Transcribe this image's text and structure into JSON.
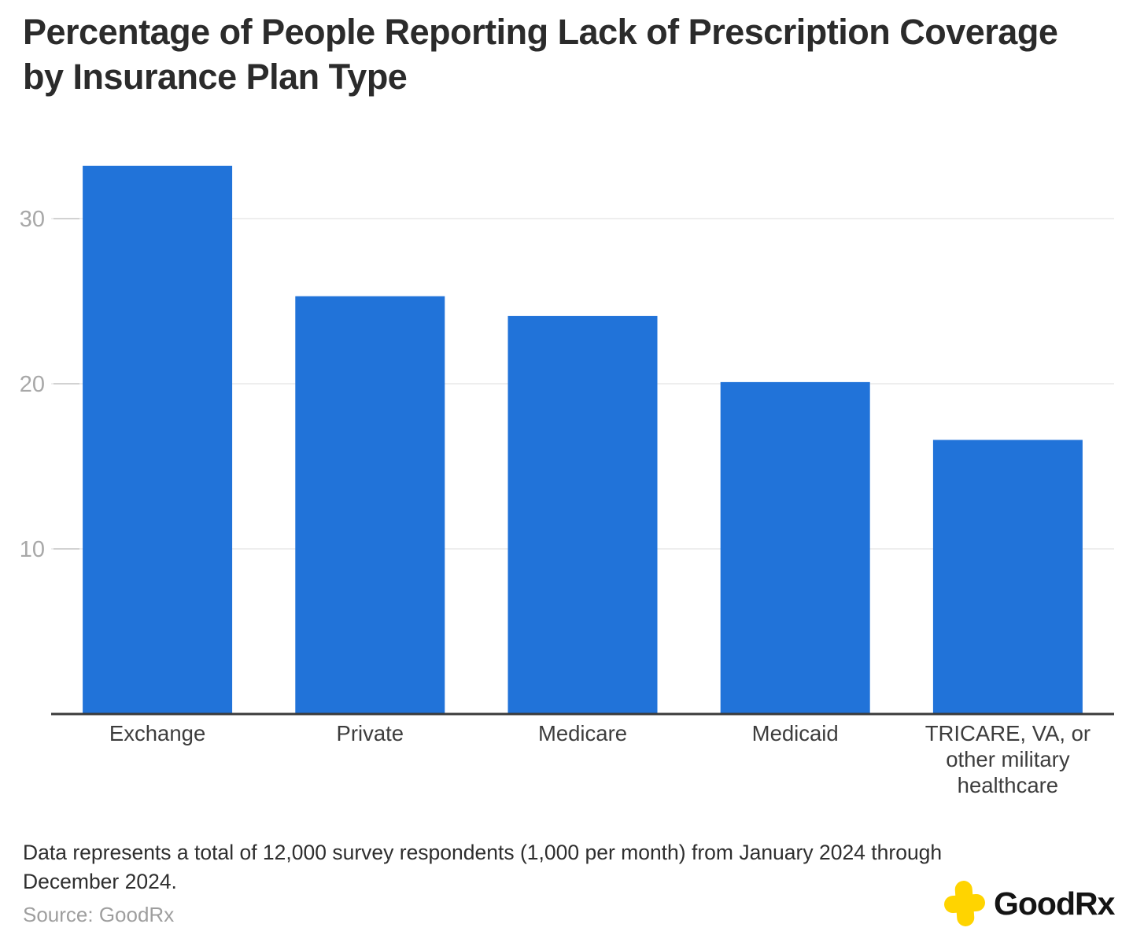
{
  "chart_data": {
    "type": "bar",
    "title": "Percentage of People Reporting Lack of Prescription Coverage by Insurance Plan Type",
    "categories": [
      "Exchange",
      "Private",
      "Medicare",
      "Medicaid",
      "TRICARE, VA, or other military healthcare"
    ],
    "categories_wrapped": [
      [
        "Exchange"
      ],
      [
        "Private"
      ],
      [
        "Medicare"
      ],
      [
        "Medicaid"
      ],
      [
        "TRICARE, VA, or",
        "other military",
        "healthcare"
      ]
    ],
    "values": [
      33.2,
      25.3,
      24.1,
      20.1,
      16.6
    ],
    "xlabel": "",
    "ylabel": "",
    "ylim": [
      0,
      35.6
    ],
    "yticks": [
      10,
      20,
      30
    ],
    "grid": "horizontal",
    "legend": "none",
    "bar_color": "#2173d9",
    "gridline_color": "#e9e9e9",
    "tick_mark_color": "#d2d2d2",
    "tick_label_color": "#a8a8a8",
    "category_label_color": "#3d3d3d",
    "axis_line_color": "#3a3a3a"
  },
  "footer": {
    "note": "Data represents a total of 12,000 survey respondents (1,000 per month) from January 2024 through December 2024.",
    "source": "Source: GoodRx"
  },
  "logo": {
    "text": "GoodRx",
    "icon": "goodrx-cross-icon",
    "icon_color": "#FFD400"
  }
}
